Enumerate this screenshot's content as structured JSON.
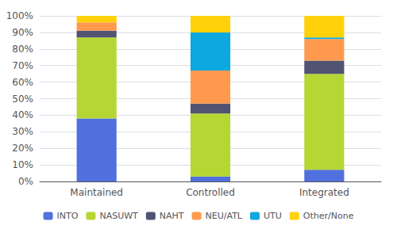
{
  "chart_data": {
    "type": "bar",
    "stacked": true,
    "categories": [
      "Maintained",
      "Controlled",
      "Integrated"
    ],
    "series": [
      {
        "name": "INTO",
        "values": [
          38,
          3,
          7
        ]
      },
      {
        "name": "NASUWT",
        "values": [
          49,
          38,
          58
        ]
      },
      {
        "name": "NAHT",
        "values": [
          4,
          6,
          8
        ]
      },
      {
        "name": "NEU/ATL",
        "values": [
          5,
          20,
          13
        ]
      },
      {
        "name": "UTU",
        "values": [
          0,
          23,
          1
        ]
      },
      {
        "name": "Other/None",
        "values": [
          4,
          10,
          13
        ]
      }
    ],
    "ylim": [
      0,
      100
    ],
    "yticks": [
      {
        "value": 0,
        "label": "0%"
      },
      {
        "value": 10,
        "label": "10%"
      },
      {
        "value": 20,
        "label": "20%"
      },
      {
        "value": 30,
        "label": "30%"
      },
      {
        "value": 40,
        "label": "40%"
      },
      {
        "value": 50,
        "label": "50%"
      },
      {
        "value": 60,
        "label": "60%"
      },
      {
        "value": 70,
        "label": "70%"
      },
      {
        "value": 80,
        "label": "80%"
      },
      {
        "value": 90,
        "label": "90%"
      },
      {
        "value": 100,
        "label": "100%"
      }
    ],
    "grid": true,
    "legend": "bottom"
  }
}
